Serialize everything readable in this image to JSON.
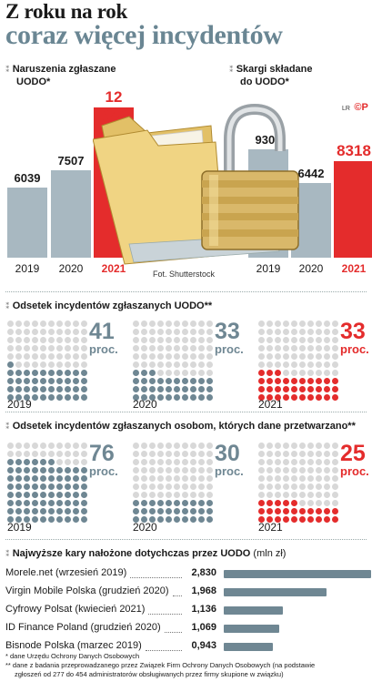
{
  "title": {
    "line1": "Z roku na rok",
    "line2": "coraz więcej incydentów"
  },
  "colors": {
    "accent_red": "#e42c2c",
    "bar_grey": "#a8b8c1",
    "dark_grey": "#6f8793",
    "title_grey": "#6a8693"
  },
  "icons": [
    "folder-icon",
    "padlock-icon"
  ],
  "photo_credit": "Fot. Shutterstock",
  "logo_letters": "LR",
  "logo_symbol": "©P",
  "chart_data": [
    {
      "type": "bar",
      "title": "Naruszenia zgłaszane UODO*",
      "title_line1": "Naruszenia zgłaszane",
      "title_line2": "UODO*",
      "categories": [
        "2019",
        "2020",
        "2021"
      ],
      "values": [
        6039,
        7507,
        12946
      ],
      "value_labels": [
        "6039",
        "7507",
        "12 946"
      ],
      "highlight": "2021"
    },
    {
      "type": "bar",
      "title": "Skargi składane do UODO*",
      "title_line1": "Skargi składane",
      "title_line2": "do UODO*",
      "categories": [
        "2019",
        "2020",
        "2021"
      ],
      "values": [
        9304,
        6442,
        8318
      ],
      "value_labels": [
        "9304",
        "6442",
        "8318"
      ],
      "highlight": "2021"
    },
    {
      "type": "bar",
      "title": "Odsetek incydentów zgłaszanych UODO**",
      "categories": [
        "2019",
        "2020",
        "2021"
      ],
      "values": [
        41,
        33,
        33
      ],
      "unit": "proc.",
      "highlight": "2021"
    },
    {
      "type": "bar",
      "title": "Odsetek incydentów zgłaszanych osobom, których dane przetwarzano**",
      "categories": [
        "2019",
        "2020",
        "2021"
      ],
      "values": [
        76,
        30,
        25
      ],
      "unit": "proc.",
      "highlight": "2021"
    },
    {
      "type": "bar",
      "orientation": "horizontal",
      "title": "Najwyższe kary nałożone dotychczas przez UODO",
      "ylabel": "(mln zł)",
      "categories": [
        "Morele.net (wrzesień 2019)",
        "Virgin Mobile Polska (grudzień 2020)",
        "Cyfrowy Polsat (kwiecień 2021)",
        "ID Finance Poland (grudzień 2020)",
        "Bisnode Polska (marzec 2019)"
      ],
      "values": [
        2.83,
        1.968,
        1.136,
        1.069,
        0.943
      ],
      "value_labels": [
        "2,830",
        "1,968",
        "1,136",
        "1,069",
        "0,943"
      ]
    }
  ],
  "footnotes": {
    "one": "* dane Urzędu Ochrony Danych Osobowych",
    "two_line1": "** dane z badania przeprowadzanego przez Związek Firm Ochrony Danych Osobowych (na podstawie",
    "two_line2": "zgłoszeń od 277 do 454 administratorów obsługiwanych przez firmy skupione w związku)"
  }
}
